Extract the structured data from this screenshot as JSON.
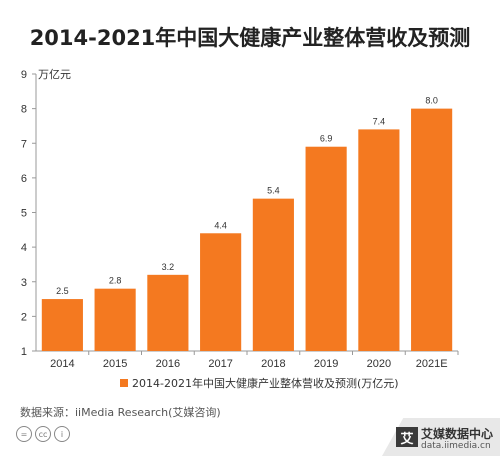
{
  "title": "2014-2021年中国大健康产业整体营收及预测",
  "source": "数据来源：iiMedia Research(艾媒咨询)",
  "brand": {
    "name": "艾媒数据中心",
    "url": "data.iimedia.cn",
    "logo_text": "艾"
  },
  "cc_icons": [
    "=",
    "cc",
    "i"
  ],
  "colors": {
    "bar": "#f47920",
    "axis": "#999999",
    "grid": "#dddddd",
    "text": "#333333"
  },
  "chart_data": {
    "type": "bar",
    "title": "2014-2021年中国大健康产业整体营收及预测",
    "ylabel": "万亿元",
    "xlabel": "",
    "categories": [
      "2014",
      "2015",
      "2016",
      "2017",
      "2018",
      "2019",
      "2020",
      "2021E"
    ],
    "series": [
      {
        "name": "2014-2021年中国大健康产业整体营收及预测(万亿元)",
        "values": [
          2.5,
          2.8,
          3.2,
          4.4,
          5.4,
          6.9,
          7.4,
          8.0
        ]
      }
    ],
    "value_labels": [
      "2.5",
      "2.8",
      "3.2",
      "4.4",
      "5.4",
      "6.9",
      "7.4",
      "8.0"
    ],
    "ylim": [
      1,
      9
    ],
    "yticks": [
      1,
      2,
      3,
      4,
      5,
      6,
      7,
      8,
      9
    ],
    "grid": false,
    "legend": "bottom"
  }
}
